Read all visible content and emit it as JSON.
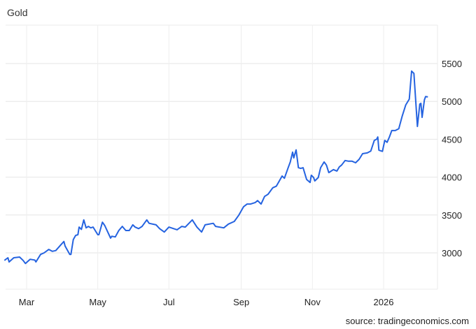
{
  "chart_data": {
    "type": "line",
    "title": "Gold",
    "source": "source: tradingeconomics.com",
    "xlabel": "",
    "ylabel": "",
    "ylim": [
      2530,
      6000
    ],
    "yticks": [
      3000,
      3500,
      4000,
      4500,
      5000,
      5500
    ],
    "ytick_labels": [
      "3000",
      "3500",
      "4000",
      "4500",
      "5000",
      "5500"
    ],
    "xticks": [
      "2025-03-01",
      "2025-05-01",
      "2025-07-01",
      "2025-09-01",
      "2025-11-01",
      "2026-01-01"
    ],
    "xtick_labels": [
      "Mar",
      "May",
      "Jul",
      "Sep",
      "Nov",
      "2026"
    ],
    "grid": true,
    "line_color": "#2563e0",
    "series": [
      {
        "x": [
          "2025-02-10",
          "2025-02-13",
          "2025-02-14",
          "2025-02-18",
          "2025-02-23",
          "2025-02-26",
          "2025-02-28",
          "2025-03-04",
          "2025-03-08",
          "2025-03-09",
          "2025-03-13",
          "2025-03-16",
          "2025-03-20",
          "2025-03-23",
          "2025-03-26",
          "2025-03-30",
          "2025-04-02",
          "2025-04-03",
          "2025-04-07",
          "2025-04-08",
          "2025-04-10",
          "2025-04-12",
          "2025-04-14",
          "2025-04-15",
          "2025-04-17",
          "2025-04-19",
          "2025-04-21",
          "2025-04-23",
          "2025-04-25",
          "2025-04-27",
          "2025-05-01",
          "2025-05-02",
          "2025-05-05",
          "2025-05-07",
          "2025-05-10",
          "2025-05-12",
          "2025-05-13",
          "2025-05-16",
          "2025-05-19",
          "2025-05-22",
          "2025-05-25",
          "2025-05-28",
          "2025-05-31",
          "2025-06-02",
          "2025-06-05",
          "2025-06-08",
          "2025-06-12",
          "2025-06-14",
          "2025-06-20",
          "2025-06-23",
          "2025-06-27",
          "2025-07-01",
          "2025-07-05",
          "2025-07-08",
          "2025-07-12",
          "2025-07-15",
          "2025-07-21",
          "2025-07-25",
          "2025-07-29",
          "2025-08-01",
          "2025-08-08",
          "2025-08-10",
          "2025-08-17",
          "2025-08-21",
          "2025-08-26",
          "2025-08-30",
          "2025-09-03",
          "2025-09-06",
          "2025-09-09",
          "2025-09-13",
          "2025-09-15",
          "2025-09-18",
          "2025-09-21",
          "2025-09-24",
          "2025-09-28",
          "2025-10-01",
          "2025-10-04",
          "2025-10-06",
          "2025-10-08",
          "2025-10-11",
          "2025-10-13",
          "2025-10-15",
          "2025-10-16",
          "2025-10-18",
          "2025-10-20",
          "2025-10-22",
          "2025-10-24",
          "2025-10-27",
          "2025-10-30",
          "2025-10-31",
          "2025-11-02",
          "2025-11-03",
          "2025-11-06",
          "2025-11-08",
          "2025-11-11",
          "2025-11-13",
          "2025-11-15",
          "2025-11-19",
          "2025-11-22",
          "2025-11-24",
          "2025-11-26",
          "2025-11-29",
          "2025-12-02",
          "2025-12-05",
          "2025-12-08",
          "2025-12-11",
          "2025-12-14",
          "2025-12-18",
          "2025-12-21",
          "2025-12-24",
          "2025-12-26",
          "2025-12-27",
          "2025-12-28",
          "2025-12-31",
          "2026-01-02",
          "2026-01-04",
          "2026-01-06",
          "2026-01-08",
          "2026-01-11",
          "2026-01-14",
          "2026-01-17",
          "2026-01-20",
          "2026-01-23",
          "2026-01-25",
          "2026-01-27",
          "2026-01-30",
          "2026-02-01",
          "2026-02-02",
          "2026-02-03",
          "2026-02-05",
          "2026-02-06",
          "2026-02-08"
        ],
        "y": [
          2900,
          2935,
          2880,
          2935,
          2945,
          2900,
          2860,
          2915,
          2905,
          2880,
          2980,
          3000,
          3045,
          3020,
          3030,
          3100,
          3150,
          3090,
          2980,
          2980,
          3175,
          3230,
          3240,
          3340,
          3310,
          3435,
          3330,
          3350,
          3330,
          3340,
          3240,
          3240,
          3405,
          3360,
          3260,
          3195,
          3220,
          3210,
          3295,
          3350,
          3295,
          3295,
          3370,
          3340,
          3320,
          3350,
          3435,
          3390,
          3370,
          3320,
          3275,
          3340,
          3320,
          3305,
          3350,
          3340,
          3435,
          3340,
          3275,
          3370,
          3390,
          3350,
          3330,
          3380,
          3415,
          3500,
          3610,
          3645,
          3645,
          3665,
          3690,
          3645,
          3745,
          3775,
          3860,
          3880,
          3960,
          4015,
          3985,
          4115,
          4200,
          4330,
          4255,
          4360,
          4125,
          4115,
          4125,
          3970,
          3930,
          4025,
          3995,
          3950,
          3995,
          4125,
          4200,
          4160,
          4060,
          4100,
          4080,
          4135,
          4160,
          4220,
          4210,
          4210,
          4190,
          4235,
          4310,
          4320,
          4345,
          4485,
          4500,
          4530,
          4355,
          4340,
          4485,
          4460,
          4530,
          4615,
          4615,
          4640,
          4810,
          4955,
          5030,
          5400,
          5370,
          4670,
          4965,
          4975,
          4790,
          5020,
          5065,
          5060
        ]
      }
    ]
  }
}
